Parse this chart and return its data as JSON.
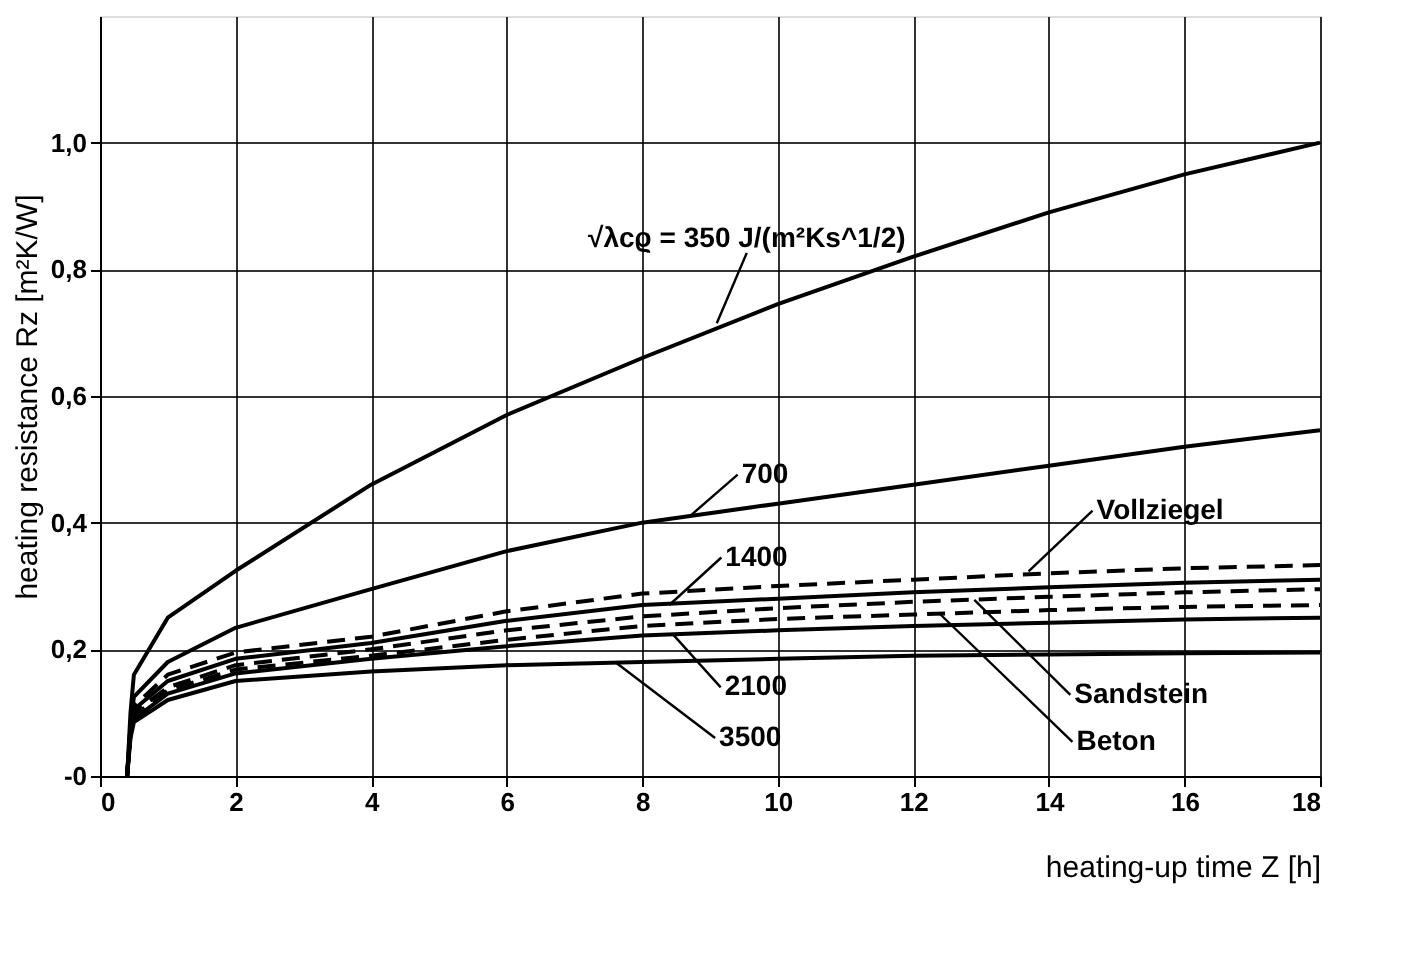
{
  "chart_data": {
    "type": "line",
    "xlabel": "heating-up time Z [h]",
    "ylabel": "heating resistance Rz [m²K/W]",
    "x": [
      0.4,
      0.45,
      0.5,
      1,
      2,
      4,
      6,
      8,
      10,
      12,
      14,
      16,
      18
    ],
    "series": [
      {
        "color": "#000000",
        "line_style": "solid",
        "values": [
          0,
          0.1,
          0.16,
          0.25,
          0.324,
          0.46,
          0.57,
          0.66,
          0.745,
          0.82,
          0.89,
          0.95,
          1.0
        ]
      },
      {
        "color": "#000000",
        "line_style": "solid",
        "values": [
          0,
          0.08,
          0.125,
          0.18,
          0.234,
          0.295,
          0.355,
          0.4,
          0.43,
          0.46,
          0.49,
          0.52,
          0.546
        ]
      },
      {
        "color": "#000000",
        "line_style": "dashed",
        "values": [
          0,
          0.08,
          0.11,
          0.16,
          0.195,
          0.22,
          0.26,
          0.288,
          0.3,
          0.31,
          0.32,
          0.328,
          0.333
        ]
      },
      {
        "color": "#000000",
        "line_style": "solid",
        "values": [
          0,
          0.075,
          0.105,
          0.15,
          0.185,
          0.21,
          0.245,
          0.27,
          0.28,
          0.29,
          0.298,
          0.305,
          0.31
        ]
      },
      {
        "color": "#000000",
        "line_style": "dashed",
        "values": [
          0,
          0.07,
          0.1,
          0.14,
          0.175,
          0.2,
          0.23,
          0.252,
          0.265,
          0.275,
          0.283,
          0.29,
          0.295
        ]
      },
      {
        "color": "#000000",
        "line_style": "dashed",
        "values": [
          0,
          0.068,
          0.095,
          0.135,
          0.168,
          0.19,
          0.215,
          0.237,
          0.248,
          0.255,
          0.262,
          0.267,
          0.27
        ]
      },
      {
        "color": "#000000",
        "line_style": "solid",
        "values": [
          0,
          0.065,
          0.09,
          0.13,
          0.162,
          0.185,
          0.205,
          0.222,
          0.23,
          0.237,
          0.242,
          0.247,
          0.25
        ]
      },
      {
        "color": "#000000",
        "line_style": "solid",
        "values": [
          0,
          0.06,
          0.085,
          0.12,
          0.15,
          0.165,
          0.175,
          0.18,
          0.185,
          0.19,
          0.192,
          0.194,
          0.195
        ]
      }
    ],
    "annotations": [
      {
        "text": "√λcϱ = 350 J/(m²Ks^1/2)",
        "x": 9.1,
        "y": 0.715
      },
      {
        "text": "700",
        "x": 8.7,
        "y": 0.41
      },
      {
        "text": "1400",
        "x": 8.4,
        "y": 0.27
      },
      {
        "text": "Vollziegel",
        "x": 13.7,
        "y": 0.323
      },
      {
        "text": "2100",
        "x": 8.45,
        "y": 0.224
      },
      {
        "text": "3500",
        "x": 7.6,
        "y": 0.18
      },
      {
        "text": "Sandstein",
        "x": 12.9,
        "y": 0.278
      },
      {
        "text": "Beton",
        "x": 12.4,
        "y": 0.255
      }
    ],
    "xlim": [
      0,
      18
    ],
    "xticks": [
      0,
      2,
      4,
      6,
      8,
      10,
      12,
      14,
      16,
      18
    ],
    "ylim": [
      0,
      1.2
    ],
    "yticks": [
      {
        "value": 0,
        "label": "-0"
      },
      {
        "value": 0.2,
        "label": "0,2"
      },
      {
        "value": 0.4,
        "label": "0,4"
      },
      {
        "value": 0.6,
        "label": "0,6"
      },
      {
        "value": 0.8,
        "label": "0,8"
      },
      {
        "value": 1.0,
        "label": "1,0"
      }
    ],
    "grid": true,
    "marker": "none"
  }
}
